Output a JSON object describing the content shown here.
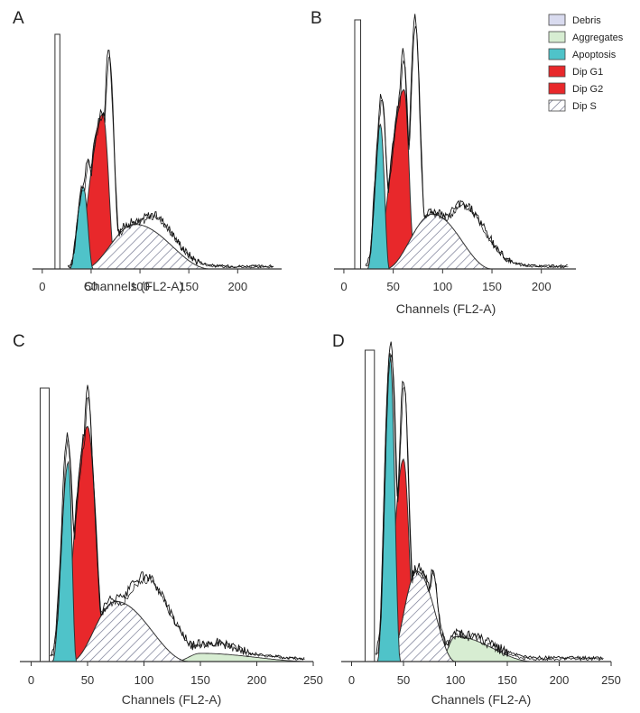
{
  "legend": [
    {
      "label": "Debris",
      "color": "#d9dbef"
    },
    {
      "label": "Aggregates",
      "color": "#d7edd2"
    },
    {
      "label": "Apoptosis",
      "color": "#4fc3c9"
    },
    {
      "label": "Dip G1",
      "color": "#e8282b"
    },
    {
      "label": "Dip G2",
      "color": "#e8282b"
    },
    {
      "label": "Dip S",
      "color": "hatch"
    }
  ],
  "chart_data": [
    {
      "panel": "A",
      "type": "area",
      "xlabel": "Channels (FL2-A)",
      "xticks": [
        0,
        50,
        100,
        150,
        200
      ],
      "xlim": [
        -10,
        245
      ],
      "debris_marker": {
        "from": 13,
        "to": 18
      },
      "apoptosis": {
        "start": 28,
        "peak": 42,
        "end": 52,
        "height": 0.35
      },
      "g1": {
        "start": 33,
        "peak": 62,
        "end": 75,
        "height": 0.66
      },
      "s_phase": {
        "start": 42,
        "peak": 95,
        "end": 172,
        "height": 0.19
      },
      "aggregates": null,
      "histogram_peaks": [
        {
          "x": 47,
          "h": 0.46
        },
        {
          "x": 68,
          "h": 0.92
        },
        {
          "x": 112,
          "h": 0.22
        }
      ]
    },
    {
      "panel": "B",
      "type": "area",
      "xlabel": "Channels (FL2-A)",
      "xticks": [
        0,
        50,
        100,
        150,
        200
      ],
      "xlim": [
        -10,
        235
      ],
      "debris_marker": {
        "from": 11,
        "to": 17
      },
      "apoptosis": {
        "start": 24,
        "peak": 37,
        "end": 46,
        "height": 0.58
      },
      "g1": {
        "start": 31,
        "peak": 61,
        "end": 72,
        "height": 0.72
      },
      "s_phase": {
        "start": 42,
        "peak": 90,
        "end": 150,
        "height": 0.22
      },
      "aggregates": null,
      "histogram_peaks": [
        {
          "x": 38,
          "h": 0.69
        },
        {
          "x": 60,
          "h": 0.86
        },
        {
          "x": 72,
          "h": 1.0
        },
        {
          "x": 120,
          "h": 0.25
        }
      ]
    },
    {
      "panel": "C",
      "type": "area",
      "xlabel": "Channels (FL2-A)",
      "xticks": [
        0,
        50,
        100,
        150,
        200,
        250
      ],
      "xlim": [
        -10,
        250
      ],
      "debris_marker": {
        "from": 8,
        "to": 16
      },
      "apoptosis": {
        "start": 19,
        "peak": 33,
        "end": 40,
        "height": 0.73
      },
      "g1": {
        "start": 25,
        "peak": 50,
        "end": 66,
        "height": 0.86
      },
      "s_phase": {
        "start": 35,
        "peak": 75,
        "end": 140,
        "height": 0.22
      },
      "aggregates": {
        "start": 128,
        "peak": 150,
        "end": 250,
        "height": 0.03
      },
      "histogram_peaks": [
        {
          "x": 32,
          "h": 0.82
        },
        {
          "x": 50,
          "h": 0.99
        },
        {
          "x": 100,
          "h": 0.3
        },
        {
          "x": 160,
          "h": 0.06
        }
      ]
    },
    {
      "panel": "D",
      "type": "area",
      "xlabel": "Channels (FL2-A)",
      "xticks": [
        0,
        50,
        100,
        150,
        200,
        250
      ],
      "xlim": [
        -10,
        250
      ],
      "debris_marker": {
        "from": 13,
        "to": 22
      },
      "apoptosis": {
        "start": 25,
        "peak": 37,
        "end": 47,
        "height": 0.99
      },
      "g1": {
        "start": 30,
        "peak": 50,
        "end": 62,
        "height": 0.65
      },
      "s_phase": {
        "start": 36,
        "peak": 63,
        "end": 100,
        "height": 0.29
      },
      "aggregates": {
        "start": 85,
        "peak": 100,
        "end": 175,
        "height": 0.08
      },
      "histogram_peaks": [
        {
          "x": 38,
          "h": 1.0
        },
        {
          "x": 50,
          "h": 0.9
        },
        {
          "x": 78,
          "h": 0.28
        },
        {
          "x": 110,
          "h": 0.07
        }
      ]
    }
  ]
}
